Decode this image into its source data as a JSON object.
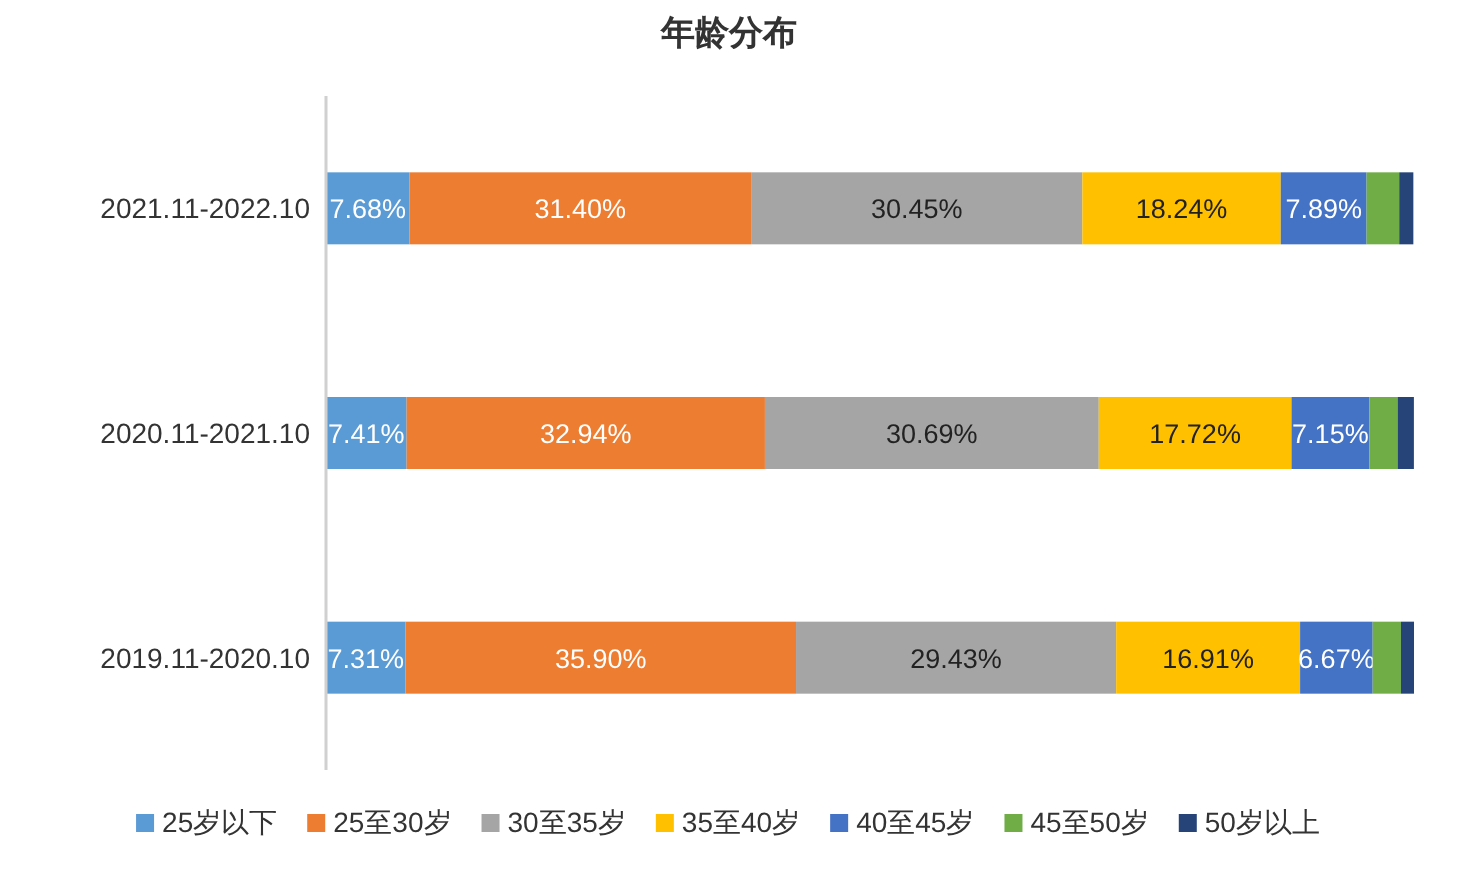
{
  "chart_data": {
    "type": "bar",
    "orientation": "horizontal",
    "stacked": true,
    "title": "年龄分布",
    "legend": "bottom",
    "categories": [
      "2021.11-2022.10",
      "2020.11-2021.10",
      "2019.11-2020.10"
    ],
    "series": [
      {
        "name": "25岁以下",
        "color": "#5b9bd5",
        "values": [
          7.68,
          7.41,
          7.31
        ],
        "value_labels": [
          "7.68%",
          "7.41%",
          "7.31%"
        ]
      },
      {
        "name": "25至30岁",
        "color": "#ed7d31",
        "values": [
          31.4,
          32.94,
          35.9
        ],
        "value_labels": [
          "31.40%",
          "32.94%",
          "35.90%"
        ]
      },
      {
        "name": "30至35岁",
        "color": "#a5a5a5",
        "values": [
          30.45,
          30.69,
          29.43
        ],
        "value_labels": [
          "30.45%",
          "30.69%",
          "29.43%"
        ]
      },
      {
        "name": "35至40岁",
        "color": "#ffc000",
        "values": [
          18.24,
          17.72,
          16.91
        ],
        "value_labels": [
          "18.24%",
          "17.72%",
          "16.91%"
        ]
      },
      {
        "name": "40至45岁",
        "color": "#4472c4",
        "values": [
          7.89,
          7.15,
          6.67
        ],
        "value_labels": [
          "7.89%",
          "7.15%",
          "6.67%"
        ]
      },
      {
        "name": "45至50岁",
        "color": "#70ad47",
        "values": [
          3.0,
          2.6,
          2.6
        ],
        "value_labels": [
          null,
          null,
          null
        ]
      },
      {
        "name": "50岁以上",
        "color": "#264478",
        "values": [
          1.3,
          1.5,
          1.2
        ],
        "value_labels": [
          null,
          null,
          null
        ]
      }
    ]
  }
}
